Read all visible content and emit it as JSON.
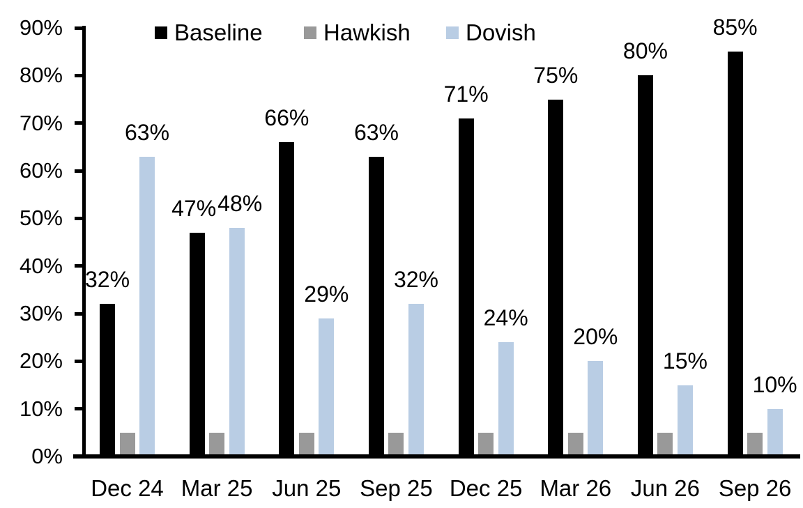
{
  "chart_data": {
    "type": "bar",
    "categories": [
      "Dec 24",
      "Mar 25",
      "Jun 25",
      "Sep 25",
      "Dec 25",
      "Mar 26",
      "Jun 26",
      "Sep 26"
    ],
    "series": [
      {
        "name": "Baseline",
        "color": "#000000",
        "values": [
          32,
          47,
          66,
          63,
          71,
          75,
          80,
          85
        ],
        "show_labels": true
      },
      {
        "name": "Hawkish",
        "color": "#999999",
        "values": [
          5,
          5,
          5,
          5,
          5,
          5,
          5,
          5
        ],
        "show_labels": false
      },
      {
        "name": "Dovish",
        "color": "#B9CDE4",
        "values": [
          63,
          48,
          29,
          32,
          24,
          20,
          15,
          10
        ],
        "show_labels": true
      }
    ],
    "title": "",
    "xlabel": "",
    "ylabel": "",
    "ylim": [
      0,
      90
    ],
    "ytick_step": 10,
    "ytick_format": "{v}%",
    "data_label_format": "{v}%",
    "grid": false,
    "legend_position": "top",
    "axis_color": "#000000",
    "background_color": "#FFFFFF"
  }
}
